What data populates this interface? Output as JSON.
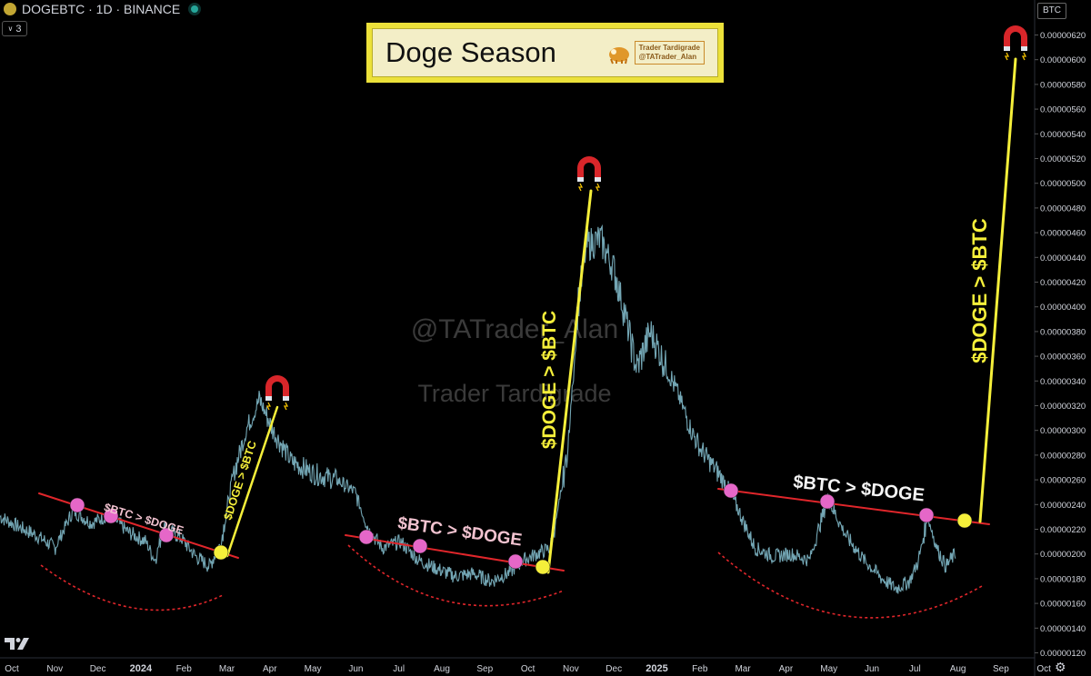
{
  "header": {
    "symbol": "DOGEBTC · 1D · BINANCE",
    "indicator_count": "3"
  },
  "title_box": {
    "title": "Doge Season",
    "brand_line1": "Trader Tardigrade",
    "brand_line2": "@TATrader_Alan"
  },
  "watermark": {
    "line1": "@TATrader_Alan",
    "line2": "Trader Tardigrade"
  },
  "axis": {
    "unit_label": "BTC",
    "x_labels": [
      "Oct",
      "Nov",
      "Dec",
      "2024",
      "Feb",
      "Mar",
      "Apr",
      "May",
      "Jun",
      "Jul",
      "Aug",
      "Sep",
      "Oct",
      "Nov",
      "Dec",
      "2025",
      "Feb",
      "Mar",
      "Apr",
      "May",
      "Jun",
      "Jul",
      "Aug",
      "Sep",
      "Oct"
    ],
    "y_ticks": [
      "0.00000620",
      "0.00000600",
      "0.00000580",
      "0.00000560",
      "0.00000540",
      "0.00000520",
      "0.00000500",
      "0.00000480",
      "0.00000460",
      "0.00000440",
      "0.00000420",
      "0.00000400",
      "0.00000380",
      "0.00000360",
      "0.00000340",
      "0.00000320",
      "0.00000300",
      "0.00000280",
      "0.00000260",
      "0.00000240",
      "0.00000220",
      "0.00000200",
      "0.00000180",
      "0.00000160",
      "0.00000140",
      "0.00000120"
    ]
  },
  "annotations": {
    "btc_gt_doge": "$BTC > $DOGE",
    "doge_gt_btc": "$DOGE > $BTC"
  },
  "colors": {
    "price_line": "#7fb8c8",
    "trend_line": "#e0262b",
    "arc": "#e0262b",
    "projection": "#f5ef3a",
    "touch_marker": "#e567c8",
    "breakout_marker": "#f5ef3a",
    "magnet_icon": "magnet-icon"
  },
  "chart_data": {
    "type": "line",
    "title": "Doge Season",
    "y_unit": "BTC",
    "ylim": [
      1.2e-06,
      6.3e-06
    ],
    "x": [
      "2023-10",
      "2023-11",
      "2023-12",
      "2024-01",
      "2024-02",
      "2024-03",
      "2024-04",
      "2024-05",
      "2024-06",
      "2024-07",
      "2024-08",
      "2024-09",
      "2024-10",
      "2024-11",
      "2024-12",
      "2025-01",
      "2025-02",
      "2025-03",
      "2025-04",
      "2025-05",
      "2025-06",
      "2025-07",
      "2025-08",
      "2025-09",
      "2025-10"
    ],
    "series": [
      {
        "values": [
          2.3e-06,
          2.1e-06,
          2.2e-06,
          1.9e-06,
          1.8e-06,
          2.1e-06,
          3e-06,
          2.5e-06,
          2.2e-06,
          2e-06,
          1.8e-06,
          1.8e-06,
          1.9e-06,
          3.6e-06,
          4.6e-06,
          3.8e-06,
          3e-06,
          2.4e-06,
          2e-06,
          2.1e-06,
          1.6e-06,
          1.9e-06,
          2e-06,
          null,
          null
        ]
      }
    ],
    "cycles": [
      {
        "trend": "$BTC > $DOGE",
        "breakout": "2024-03",
        "projection": "$DOGE > $BTC",
        "target": 3.2e-06
      },
      {
        "trend": "$BTC > $DOGE",
        "breakout": "2024-10",
        "projection": "$DOGE > $BTC",
        "target": 5e-06
      },
      {
        "trend": "$BTC > $DOGE",
        "breakout": "2025-08",
        "projection": "$DOGE > $BTC",
        "target": 6e-06
      }
    ]
  }
}
